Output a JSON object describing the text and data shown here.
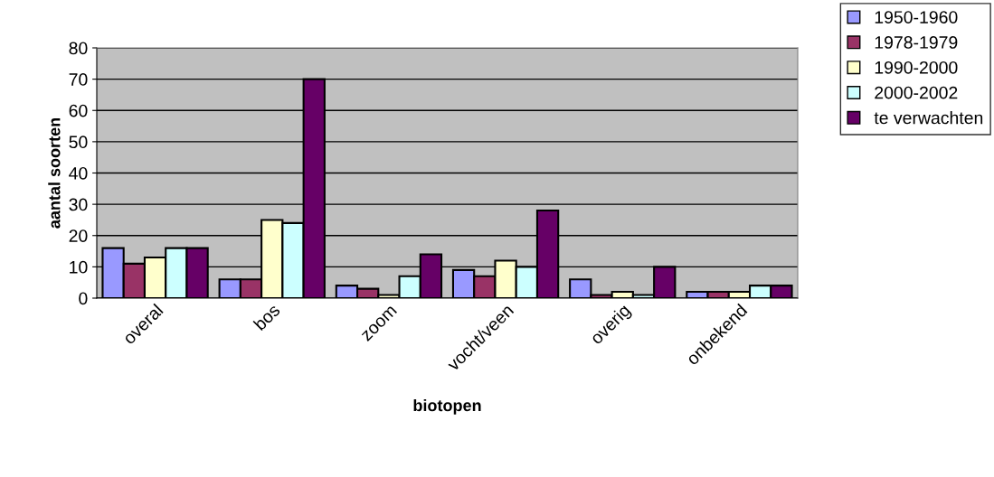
{
  "chart_data": {
    "type": "bar",
    "xlabel": "biotopen",
    "ylabel": "aantal soorten",
    "categories": [
      "overal",
      "bos",
      "zoom",
      "vocht/veen",
      "overig",
      "onbekend"
    ],
    "series": [
      {
        "name": "1950-1960",
        "color": "#9999ff",
        "values": [
          16,
          6,
          4,
          9,
          6,
          2
        ]
      },
      {
        "name": "1978-1979",
        "color": "#993366",
        "values": [
          11,
          6,
          3,
          7,
          1,
          2
        ]
      },
      {
        "name": "1990-2000",
        "color": "#ffffcc",
        "values": [
          13,
          25,
          1,
          12,
          2,
          2
        ]
      },
      {
        "name": "2000-2002",
        "color": "#ccffff",
        "values": [
          16,
          24,
          7,
          10,
          1,
          4
        ]
      },
      {
        "name": "te verwachten",
        "color": "#660066",
        "values": [
          16,
          70,
          14,
          28,
          10,
          4
        ]
      }
    ],
    "ylim": [
      0,
      80
    ],
    "yticks": [
      0,
      10,
      20,
      30,
      40,
      50,
      60,
      70,
      80
    ],
    "grid": "y",
    "legend": "top right"
  }
}
